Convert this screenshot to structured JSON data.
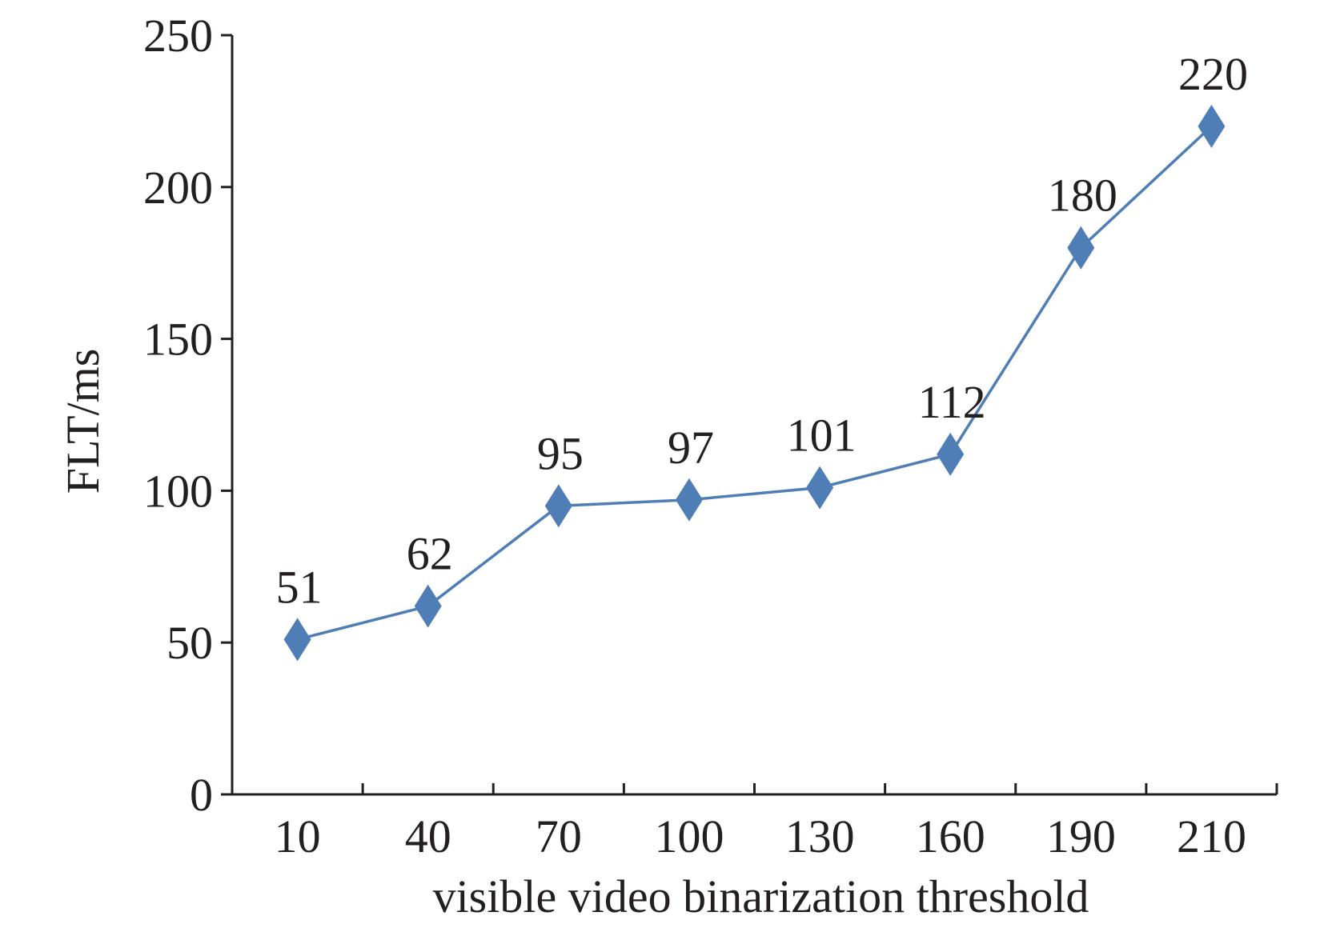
{
  "chart_data": {
    "type": "line",
    "title": "",
    "xlabel": "visible video binarization threshold",
    "ylabel": "FLT/ms",
    "categories": [
      "10",
      "40",
      "70",
      "100",
      "130",
      "160",
      "190",
      "210"
    ],
    "series": [
      {
        "values": [
          51,
          62,
          95,
          97,
          101,
          112,
          180,
          220
        ],
        "color": "#4f7db5",
        "marker": "diamond"
      }
    ],
    "data_labels": [
      "51",
      "62",
      "95",
      "97",
      "101",
      "112",
      "180",
      "220"
    ],
    "ylim": [
      0,
      250
    ],
    "yticks": [
      0,
      50,
      100,
      150,
      200,
      250
    ],
    "grid": false,
    "legend": "none"
  }
}
